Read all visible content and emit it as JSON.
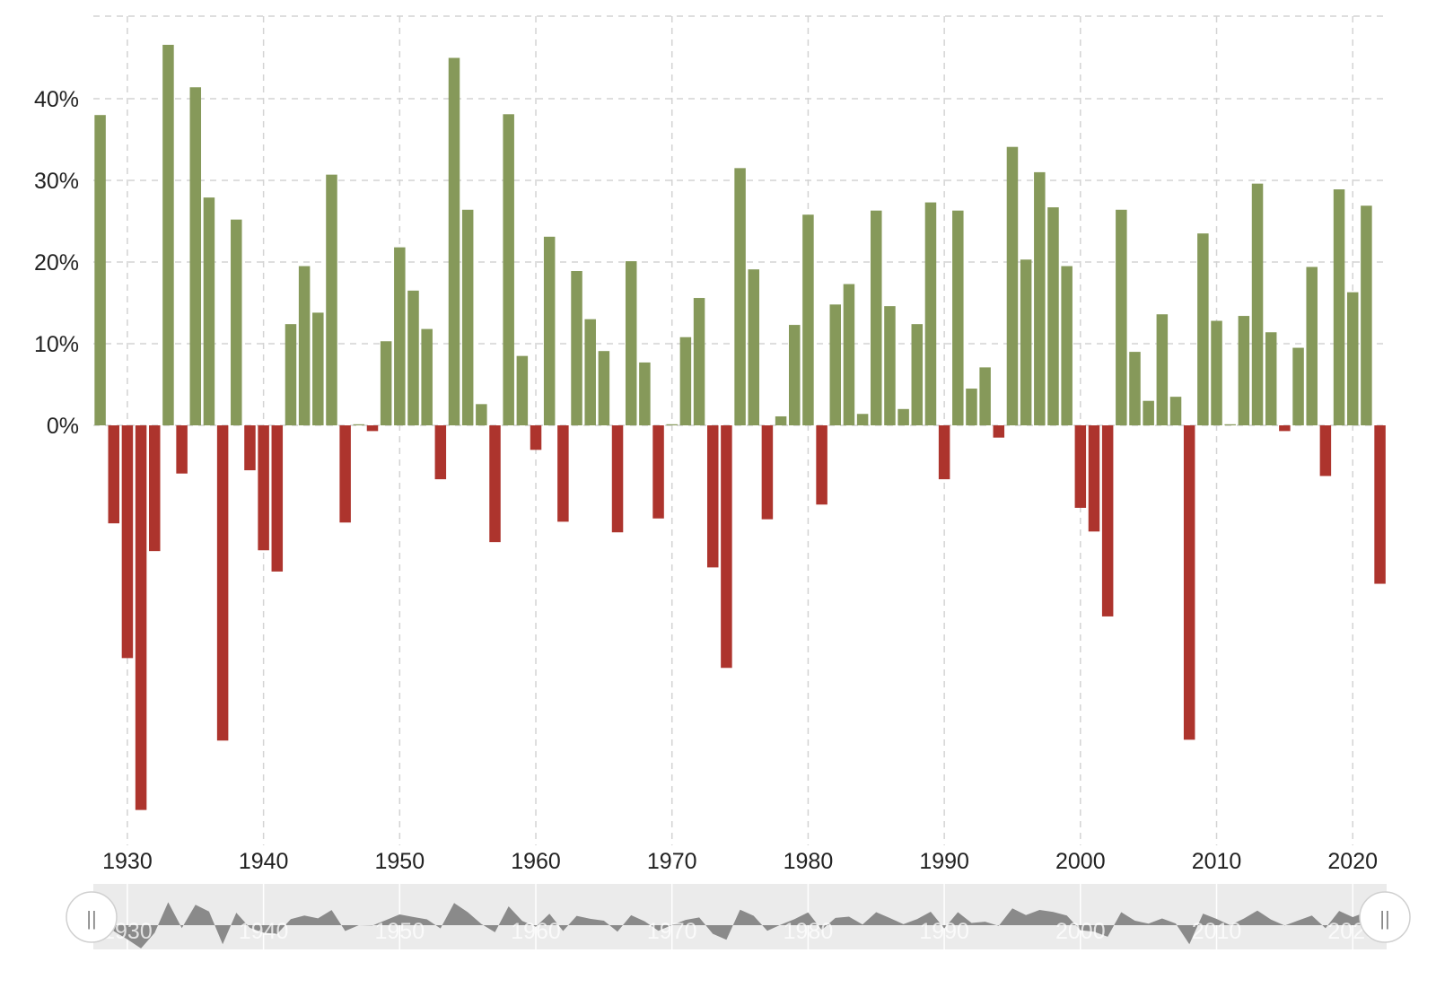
{
  "chart_data": {
    "type": "bar",
    "title": "",
    "xlabel": "",
    "ylabel": "",
    "ylim": [
      -48,
      50
    ],
    "xlim": [
      1927.5,
      2022.5
    ],
    "grid": true,
    "colors": {
      "positive": "#86995a",
      "negative": "#ad342d",
      "grid": "#d3d3d3",
      "navigator_bg": "#ebebeb",
      "navigator_area": "#8a8a8a"
    },
    "y_ticks": [
      0,
      10,
      20,
      30,
      40
    ],
    "y_tick_labels": [
      "0%",
      "10%",
      "20%",
      "30%",
      "40%"
    ],
    "x_ticks": [
      1930,
      1940,
      1950,
      1960,
      1970,
      1980,
      1990,
      2000,
      2010,
      2020
    ],
    "x_tick_labels": [
      "1930",
      "1940",
      "1950",
      "1960",
      "1970",
      "1980",
      "1990",
      "2000",
      "2010",
      "2020"
    ],
    "navigator_tick_labels": [
      "1930",
      "1940",
      "1950",
      "1960",
      "1970",
      "1980",
      "1990",
      "2000",
      "2010",
      "2020"
    ],
    "navigator_handle_label": "||",
    "series": [
      {
        "x": [
          1928,
          1929,
          1930,
          1931,
          1932,
          1933,
          1934,
          1935,
          1936,
          1937,
          1938,
          1939,
          1940,
          1941,
          1942,
          1943,
          1944,
          1945,
          1946,
          1947,
          1948,
          1949,
          1950,
          1951,
          1952,
          1953,
          1954,
          1955,
          1956,
          1957,
          1958,
          1959,
          1960,
          1961,
          1962,
          1963,
          1964,
          1965,
          1966,
          1967,
          1968,
          1969,
          1970,
          1971,
          1972,
          1973,
          1974,
          1975,
          1976,
          1977,
          1978,
          1979,
          1980,
          1981,
          1982,
          1983,
          1984,
          1985,
          1986,
          1987,
          1988,
          1989,
          1990,
          1991,
          1992,
          1993,
          1994,
          1995,
          1996,
          1997,
          1998,
          1999,
          2000,
          2001,
          2002,
          2003,
          2004,
          2005,
          2006,
          2007,
          2008,
          2009,
          2010,
          2011,
          2012,
          2013,
          2014,
          2015,
          2016,
          2017,
          2018,
          2019,
          2020,
          2021,
          2022
        ],
        "values": [
          38.0,
          -12.0,
          -28.5,
          -47.1,
          -15.4,
          46.6,
          -5.9,
          41.4,
          27.9,
          -38.6,
          25.2,
          -5.5,
          -15.3,
          -17.9,
          12.4,
          19.5,
          13.8,
          30.7,
          -11.9,
          0.0,
          -0.7,
          10.3,
          21.8,
          16.5,
          11.8,
          -6.6,
          45.0,
          26.4,
          2.6,
          -14.3,
          38.1,
          8.5,
          -3.0,
          23.1,
          -11.8,
          18.9,
          13.0,
          9.1,
          -13.1,
          20.1,
          7.7,
          -11.4,
          0.1,
          10.8,
          15.6,
          -17.4,
          -29.7,
          31.5,
          19.1,
          -11.5,
          1.1,
          12.3,
          25.8,
          -9.7,
          14.8,
          17.3,
          1.4,
          26.3,
          14.6,
          2.0,
          12.4,
          27.3,
          -6.6,
          26.3,
          4.5,
          7.1,
          -1.5,
          34.1,
          20.3,
          31.0,
          26.7,
          19.5,
          -10.1,
          -13.0,
          -23.4,
          26.4,
          9.0,
          3.0,
          13.6,
          3.5,
          -38.5,
          23.5,
          12.8,
          0.0,
          13.4,
          29.6,
          11.4,
          -0.7,
          9.5,
          19.4,
          -6.2,
          28.9,
          16.3,
          26.9,
          -19.4
        ]
      }
    ]
  }
}
